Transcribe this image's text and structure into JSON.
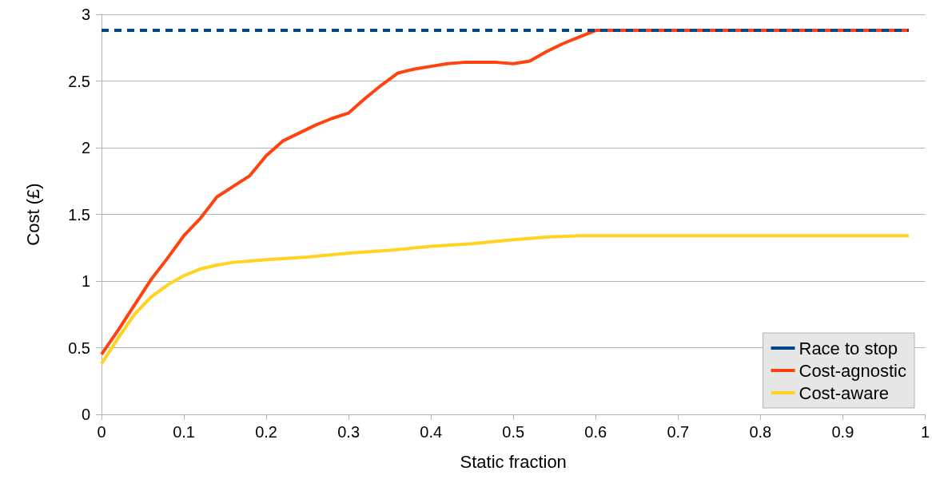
{
  "chart_data": {
    "type": "line",
    "xlabel": "Static fraction",
    "ylabel": "Cost (£)",
    "xlim": [
      0,
      1
    ],
    "xticks": [
      0,
      0.1,
      0.2,
      0.3,
      0.4,
      0.5,
      0.6,
      0.7,
      0.8,
      0.9,
      1
    ],
    "ylim": [
      0,
      3
    ],
    "yticks": [
      0,
      0.5,
      1,
      1.5,
      2,
      2.5,
      3
    ],
    "grid": "y",
    "legend": "bottom right",
    "marker": "none",
    "series": [
      {
        "name": "Race to stop",
        "color": "#004586",
        "line_style": "dashed",
        "x": [
          0,
          0.98
        ],
        "values": [
          2.88,
          2.88
        ]
      },
      {
        "name": "Cost-agnostic",
        "color": "#ff420e",
        "line_style": "solid",
        "x": [
          0,
          0.02,
          0.04,
          0.06,
          0.08,
          0.1,
          0.12,
          0.14,
          0.16,
          0.18,
          0.2,
          0.22,
          0.24,
          0.26,
          0.28,
          0.3,
          0.32,
          0.34,
          0.36,
          0.38,
          0.4,
          0.42,
          0.44,
          0.46,
          0.48,
          0.5,
          0.52,
          0.54,
          0.56,
          0.58,
          0.6,
          0.98
        ],
        "values": [
          0.45,
          0.63,
          0.82,
          1.01,
          1.17,
          1.34,
          1.47,
          1.63,
          1.71,
          1.79,
          1.94,
          2.05,
          2.11,
          2.17,
          2.22,
          2.26,
          2.37,
          2.47,
          2.56,
          2.59,
          2.61,
          2.63,
          2.64,
          2.64,
          2.64,
          2.63,
          2.65,
          2.72,
          2.78,
          2.83,
          2.88,
          2.88
        ]
      },
      {
        "name": "Cost-aware",
        "color": "#ffd320",
        "line_style": "solid",
        "x": [
          0,
          0.02,
          0.04,
          0.06,
          0.08,
          0.1,
          0.12,
          0.14,
          0.16,
          0.18,
          0.2,
          0.25,
          0.3,
          0.35,
          0.4,
          0.45,
          0.5,
          0.54,
          0.58,
          0.6,
          0.98
        ],
        "values": [
          0.38,
          0.57,
          0.75,
          0.88,
          0.97,
          1.04,
          1.09,
          1.12,
          1.14,
          1.15,
          1.16,
          1.18,
          1.21,
          1.23,
          1.26,
          1.28,
          1.31,
          1.33,
          1.34,
          1.34,
          1.34
        ]
      }
    ]
  }
}
